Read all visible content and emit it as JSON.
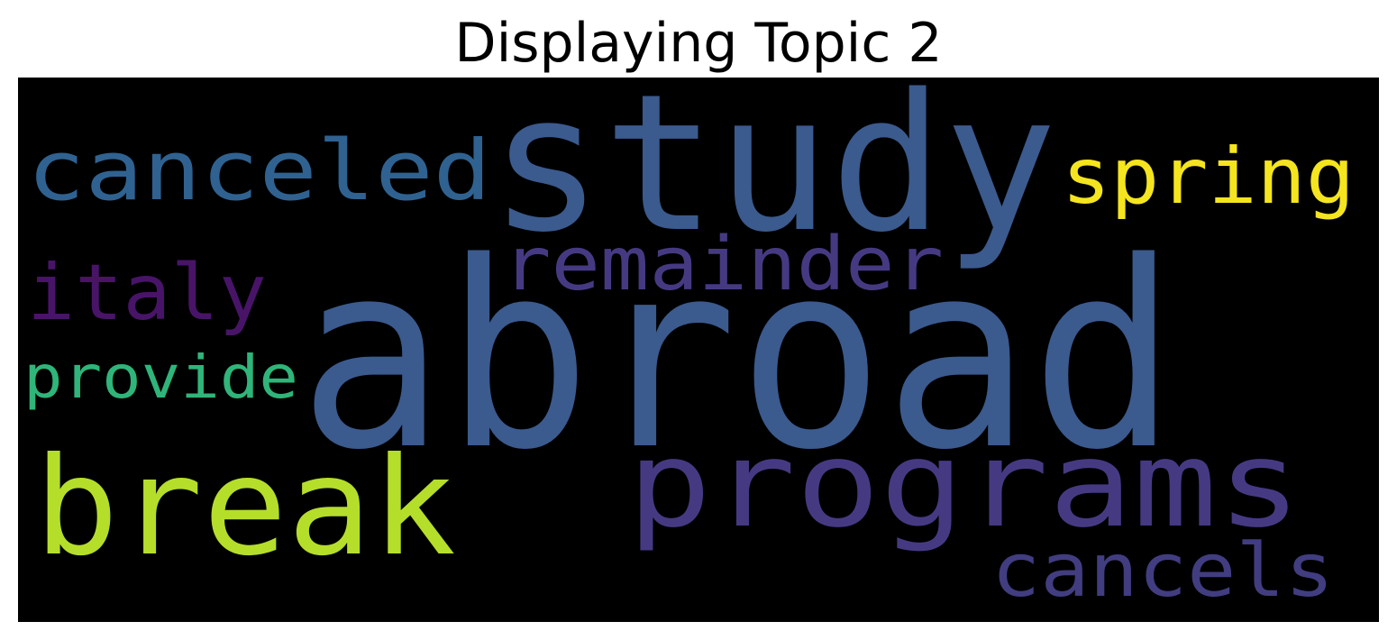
{
  "figure": {
    "title": "Displaying Topic 2"
  },
  "wordcloud": {
    "background": "#000000",
    "words": [
      {
        "key": "abroad",
        "text": "abroad",
        "color": "#3b5a8e"
      },
      {
        "key": "study",
        "text": "study",
        "color": "#3b5a8e"
      },
      {
        "key": "programs",
        "text": "programs",
        "color": "#453a82"
      },
      {
        "key": "break",
        "text": "break",
        "color": "#b5de2b"
      },
      {
        "key": "canceled",
        "text": "canceled",
        "color": "#2f6290"
      },
      {
        "key": "spring",
        "text": "spring",
        "color": "#f5e51f"
      },
      {
        "key": "remainder",
        "text": "remainder",
        "color": "#453a82"
      },
      {
        "key": "italy",
        "text": "italy",
        "color": "#481468"
      },
      {
        "key": "provide",
        "text": "provide",
        "color": "#2fb579"
      },
      {
        "key": "cancels",
        "text": "cancels",
        "color": "#413d80"
      }
    ]
  }
}
